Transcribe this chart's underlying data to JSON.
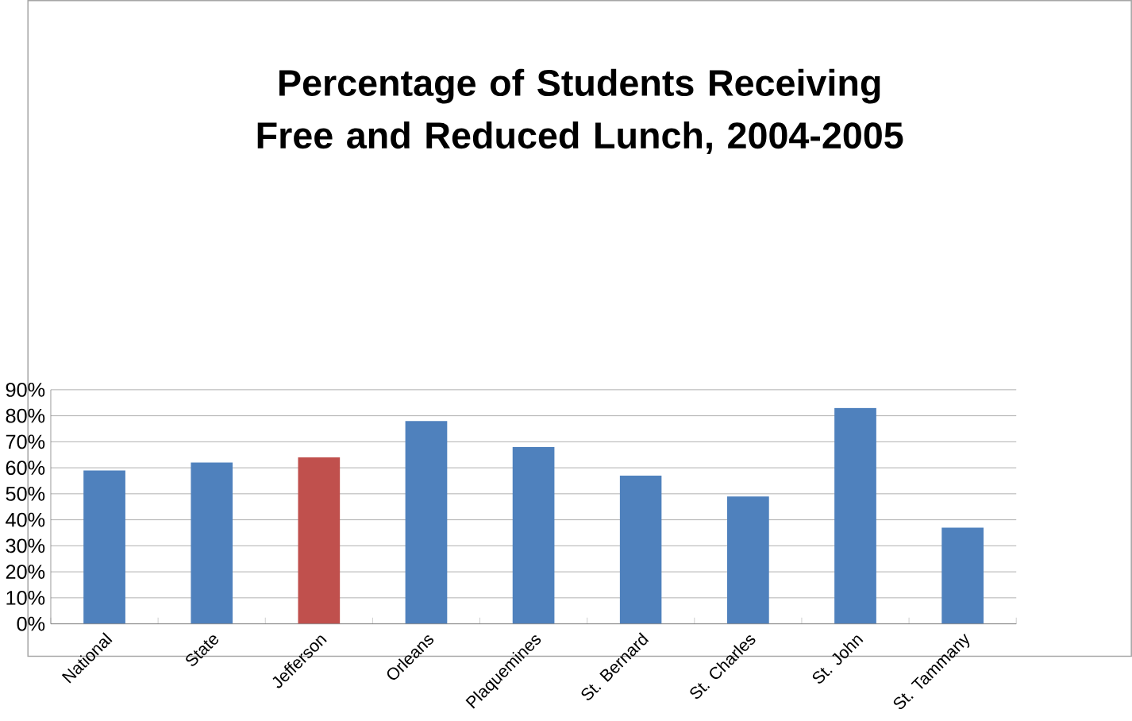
{
  "chart_data": {
    "type": "bar",
    "title": "Percentage of Students Receiving Free and Reduced Lunch, 2004-2005",
    "categories": [
      "National",
      "State",
      "Jefferson",
      "Orleans",
      "Plaquemines",
      "St. Bernard",
      "St. Charles",
      "St. John",
      "St. Tammany"
    ],
    "values": [
      59,
      62,
      64,
      78,
      68,
      57,
      49,
      83,
      37
    ],
    "colors": [
      "#4f81bd",
      "#4f81bd",
      "#c0504d",
      "#4f81bd",
      "#4f81bd",
      "#4f81bd",
      "#4f81bd",
      "#4f81bd",
      "#4f81bd"
    ],
    "ylim": [
      0,
      90
    ],
    "yticks": [
      {
        "value": 0,
        "label": "0%"
      },
      {
        "value": 10,
        "label": "10%"
      },
      {
        "value": 20,
        "label": "20%"
      },
      {
        "value": 30,
        "label": "30%"
      },
      {
        "value": 40,
        "label": "40%"
      },
      {
        "value": 50,
        "label": "50%"
      },
      {
        "value": 60,
        "label": "60%"
      },
      {
        "value": 70,
        "label": "70%"
      },
      {
        "value": 80,
        "label": "80%"
      },
      {
        "value": 90,
        "label": "90%"
      }
    ],
    "grid": "y"
  }
}
